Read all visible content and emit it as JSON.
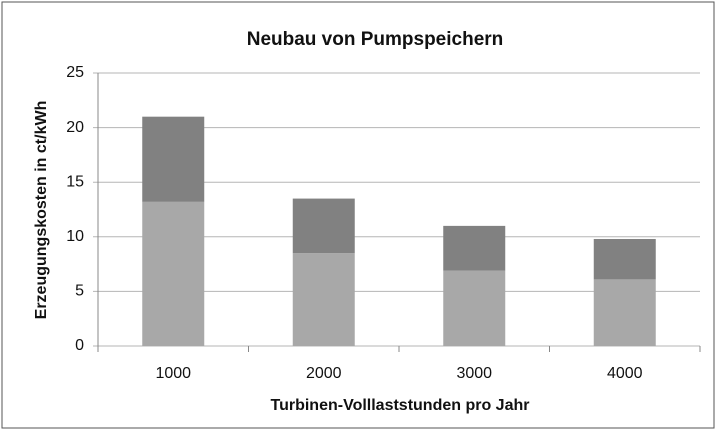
{
  "chart_data": {
    "type": "stacked_bar",
    "title": "Neubau von Pumpspeichern",
    "x_label": "Turbinen-Volllaststunden pro Jahr",
    "y_label": "Erzeugungskosten in ct/kWh",
    "categories": [
      "1000",
      "2000",
      "3000",
      "4000"
    ],
    "series": [
      {
        "color": "#a8a8a8",
        "values": [
          13.2,
          8.5,
          6.9,
          6.1
        ]
      },
      {
        "color": "#818181",
        "values": [
          7.8,
          5.0,
          4.1,
          3.7
        ]
      }
    ],
    "ylim": [
      0,
      25
    ],
    "yticks": [
      0,
      5,
      10,
      15,
      20,
      25
    ],
    "grid": true
  }
}
